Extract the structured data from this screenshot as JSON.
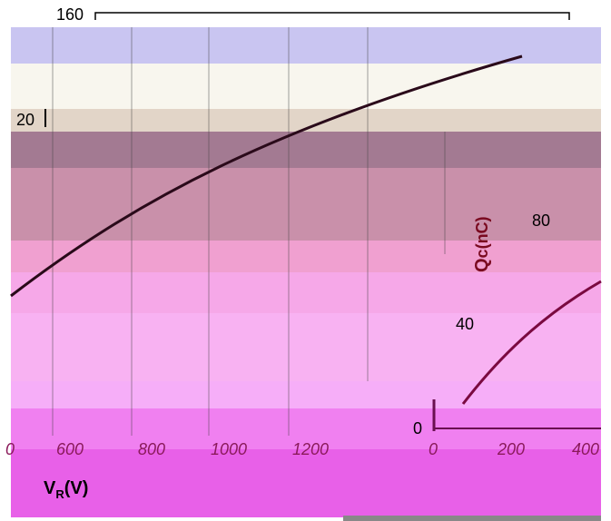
{
  "top_labels": {
    "upper": "160",
    "left": "20"
  },
  "inset_axis": {
    "ticks": [
      "80",
      "40",
      "0"
    ],
    "title_main": "Q",
    "title_sub": "c(nC)",
    "x_ticks": [
      "0",
      "200",
      "400"
    ]
  },
  "main_axis": {
    "x_ticks": [
      "0",
      "600",
      "800",
      "1000",
      "1200"
    ],
    "title_main": "V",
    "title_sub": "R",
    "title_unit": "(V)"
  }
}
